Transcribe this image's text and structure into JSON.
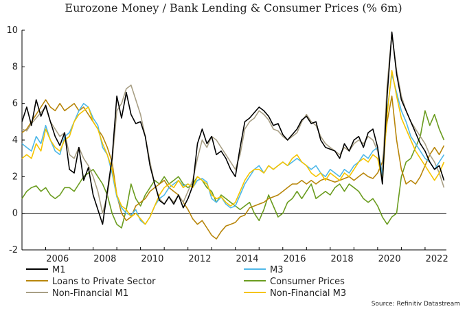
{
  "chart_data": {
    "type": "line",
    "title": "Eurozone Money / Bank Lending & Consumer Prices (% 6m)",
    "xlabel": "",
    "ylabel": "",
    "xlim": [
      2005.0,
      2022.9
    ],
    "ylim": [
      -2,
      10
    ],
    "yticks": [
      -2,
      0,
      2,
      4,
      6,
      8,
      10
    ],
    "xticks": [
      2006,
      2008,
      2010,
      2012,
      2014,
      2016,
      2018,
      2020,
      2022
    ],
    "grid": false,
    "legend_position": "bottom",
    "source": "Source: Refinitiv Datastream",
    "series": [
      {
        "name": "M1",
        "color": "#000000",
        "x": [
          2005.0,
          2005.2,
          2005.4,
          2005.6,
          2005.8,
          2006.0,
          2006.2,
          2006.4,
          2006.6,
          2006.8,
          2007.0,
          2007.2,
          2007.4,
          2007.6,
          2007.8,
          2008.0,
          2008.2,
          2008.4,
          2008.6,
          2008.8,
          2009.0,
          2009.2,
          2009.4,
          2009.6,
          2009.8,
          2010.0,
          2010.2,
          2010.4,
          2010.6,
          2010.8,
          2011.0,
          2011.2,
          2011.4,
          2011.6,
          2011.8,
          2012.0,
          2012.2,
          2012.4,
          2012.6,
          2012.8,
          2013.0,
          2013.2,
          2013.4,
          2013.6,
          2013.8,
          2014.0,
          2014.2,
          2014.4,
          2014.6,
          2014.8,
          2015.0,
          2015.2,
          2015.4,
          2015.6,
          2015.8,
          2016.0,
          2016.2,
          2016.4,
          2016.6,
          2016.8,
          2017.0,
          2017.2,
          2017.4,
          2017.6,
          2017.8,
          2018.0,
          2018.2,
          2018.4,
          2018.6,
          2018.8,
          2019.0,
          2019.2,
          2019.4,
          2019.6,
          2019.8,
          2020.0,
          2020.2,
          2020.4,
          2020.6,
          2020.8,
          2021.0,
          2021.2,
          2021.4,
          2021.6,
          2021.8,
          2022.0,
          2022.2,
          2022.4,
          2022.6,
          2022.8
        ],
        "values": [
          5.0,
          5.8,
          4.8,
          6.2,
          5.3,
          5.9,
          5.0,
          4.2,
          3.7,
          4.4,
          2.4,
          2.2,
          3.6,
          1.8,
          2.5,
          1.0,
          0.2,
          -0.6,
          1.2,
          3.0,
          6.4,
          5.2,
          6.6,
          5.4,
          4.9,
          5.0,
          4.2,
          2.6,
          1.6,
          0.7,
          0.5,
          0.9,
          0.5,
          1.0,
          0.3,
          0.8,
          1.5,
          3.8,
          4.6,
          3.8,
          4.2,
          3.2,
          3.4,
          3.0,
          2.4,
          2.0,
          3.6,
          5.0,
          5.2,
          5.5,
          5.8,
          5.6,
          5.3,
          4.8,
          4.9,
          4.3,
          4.0,
          4.3,
          4.6,
          5.1,
          5.3,
          4.9,
          5.0,
          4.0,
          3.6,
          3.5,
          3.4,
          3.0,
          3.8,
          3.4,
          4.0,
          4.2,
          3.6,
          4.4,
          4.6,
          3.6,
          1.6,
          6.4,
          9.9,
          7.6,
          6.2,
          5.6,
          5.0,
          4.4,
          3.8,
          3.4,
          2.8,
          2.4,
          2.6,
          1.8
        ]
      },
      {
        "name": "M3",
        "color": "#4fb8e8",
        "x": [
          2005.0,
          2005.2,
          2005.4,
          2005.6,
          2005.8,
          2006.0,
          2006.2,
          2006.4,
          2006.6,
          2006.8,
          2007.0,
          2007.2,
          2007.4,
          2007.6,
          2007.8,
          2008.0,
          2008.2,
          2008.4,
          2008.6,
          2008.8,
          2009.0,
          2009.2,
          2009.4,
          2009.6,
          2009.8,
          2010.0,
          2010.2,
          2010.4,
          2010.6,
          2010.8,
          2011.0,
          2011.2,
          2011.4,
          2011.6,
          2011.8,
          2012.0,
          2012.2,
          2012.4,
          2012.6,
          2012.8,
          2013.0,
          2013.2,
          2013.4,
          2013.6,
          2013.8,
          2014.0,
          2014.2,
          2014.4,
          2014.6,
          2014.8,
          2015.0,
          2015.2,
          2015.4,
          2015.6,
          2015.8,
          2016.0,
          2016.2,
          2016.4,
          2016.6,
          2016.8,
          2017.0,
          2017.2,
          2017.4,
          2017.6,
          2017.8,
          2018.0,
          2018.2,
          2018.4,
          2018.6,
          2018.8,
          2019.0,
          2019.2,
          2019.4,
          2019.6,
          2019.8,
          2020.0,
          2020.2,
          2020.4,
          2020.6,
          2020.8,
          2021.0,
          2021.2,
          2021.4,
          2021.6,
          2021.8,
          2022.0,
          2022.2,
          2022.4,
          2022.6,
          2022.8
        ],
        "values": [
          3.8,
          3.6,
          3.4,
          4.2,
          3.8,
          4.8,
          4.0,
          3.4,
          3.2,
          4.2,
          4.4,
          5.0,
          5.6,
          6.0,
          5.8,
          5.2,
          4.8,
          3.6,
          3.2,
          2.2,
          0.9,
          0.3,
          0.0,
          -0.1,
          0.2,
          -0.4,
          -0.6,
          -0.2,
          0.4,
          0.8,
          1.0,
          1.4,
          1.6,
          1.8,
          1.5,
          1.6,
          1.4,
          1.8,
          1.9,
          1.7,
          0.8,
          0.6,
          0.9,
          0.5,
          0.3,
          0.4,
          1.0,
          1.6,
          2.0,
          2.4,
          2.6,
          2.2,
          2.6,
          2.4,
          2.6,
          2.8,
          2.6,
          2.8,
          3.0,
          2.8,
          2.6,
          2.4,
          2.6,
          2.2,
          2.0,
          2.4,
          2.2,
          2.0,
          2.4,
          2.2,
          2.6,
          2.8,
          3.2,
          3.0,
          3.4,
          3.6,
          2.0,
          5.6,
          7.6,
          6.6,
          5.6,
          5.0,
          4.2,
          3.8,
          3.4,
          3.0,
          2.8,
          2.4,
          2.8,
          3.2
        ]
      },
      {
        "name": "Loans to Private Sector",
        "color": "#b8860b",
        "x": [
          2005.0,
          2005.2,
          2005.4,
          2005.6,
          2005.8,
          2006.0,
          2006.2,
          2006.4,
          2006.6,
          2006.8,
          2007.0,
          2007.2,
          2007.4,
          2007.6,
          2007.8,
          2008.0,
          2008.2,
          2008.4,
          2008.6,
          2008.8,
          2009.0,
          2009.2,
          2009.4,
          2009.6,
          2009.8,
          2010.0,
          2010.2,
          2010.4,
          2010.6,
          2010.8,
          2011.0,
          2011.2,
          2011.4,
          2011.6,
          2011.8,
          2012.0,
          2012.2,
          2012.4,
          2012.6,
          2012.8,
          2013.0,
          2013.2,
          2013.4,
          2013.6,
          2013.8,
          2014.0,
          2014.2,
          2014.4,
          2014.6,
          2014.8,
          2015.0,
          2015.2,
          2015.4,
          2015.6,
          2015.8,
          2016.0,
          2016.2,
          2016.4,
          2016.6,
          2016.8,
          2017.0,
          2017.2,
          2017.4,
          2017.6,
          2017.8,
          2018.0,
          2018.2,
          2018.4,
          2018.6,
          2018.8,
          2019.0,
          2019.2,
          2019.4,
          2019.6,
          2019.8,
          2020.0,
          2020.2,
          2020.4,
          2020.6,
          2020.8,
          2021.0,
          2021.2,
          2021.4,
          2021.6,
          2021.8,
          2022.0,
          2022.2,
          2022.4,
          2022.6,
          2022.8
        ],
        "values": [
          4.4,
          4.6,
          5.0,
          5.4,
          5.8,
          6.2,
          5.8,
          5.6,
          6.0,
          5.6,
          5.8,
          6.0,
          5.6,
          5.8,
          5.4,
          5.0,
          4.6,
          4.2,
          3.6,
          2.8,
          1.0,
          0.0,
          -0.4,
          -0.2,
          0.4,
          0.6,
          0.8,
          1.2,
          1.4,
          1.6,
          1.8,
          1.4,
          1.2,
          1.0,
          0.6,
          0.2,
          -0.3,
          -0.6,
          -0.4,
          -0.8,
          -1.2,
          -1.4,
          -1.0,
          -0.7,
          -0.6,
          -0.5,
          -0.2,
          -0.1,
          0.3,
          0.4,
          0.5,
          0.6,
          0.8,
          0.9,
          1.0,
          1.2,
          1.4,
          1.6,
          1.6,
          1.8,
          1.6,
          1.8,
          1.6,
          1.8,
          1.9,
          1.8,
          1.7,
          1.8,
          1.9,
          2.0,
          1.8,
          2.0,
          2.2,
          2.0,
          1.9,
          2.2,
          2.8,
          5.0,
          6.4,
          4.0,
          2.4,
          1.6,
          1.8,
          1.6,
          2.0,
          2.6,
          3.2,
          3.6,
          3.2,
          3.7
        ]
      },
      {
        "name": "Consumer Prices",
        "color": "#6a9c1f",
        "x": [
          2005.0,
          2005.2,
          2005.4,
          2005.6,
          2005.8,
          2006.0,
          2006.2,
          2006.4,
          2006.6,
          2006.8,
          2007.0,
          2007.2,
          2007.4,
          2007.6,
          2007.8,
          2008.0,
          2008.2,
          2008.4,
          2008.6,
          2008.8,
          2009.0,
          2009.2,
          2009.4,
          2009.6,
          2009.8,
          2010.0,
          2010.2,
          2010.4,
          2010.6,
          2010.8,
          2011.0,
          2011.2,
          2011.4,
          2011.6,
          2011.8,
          2012.0,
          2012.2,
          2012.4,
          2012.6,
          2012.8,
          2013.0,
          2013.2,
          2013.4,
          2013.6,
          2013.8,
          2014.0,
          2014.2,
          2014.4,
          2014.6,
          2014.8,
          2015.0,
          2015.2,
          2015.4,
          2015.6,
          2015.8,
          2016.0,
          2016.2,
          2016.4,
          2016.6,
          2016.8,
          2017.0,
          2017.2,
          2017.4,
          2017.6,
          2017.8,
          2018.0,
          2018.2,
          2018.4,
          2018.6,
          2018.8,
          2019.0,
          2019.2,
          2019.4,
          2019.6,
          2019.8,
          2020.0,
          2020.2,
          2020.4,
          2020.6,
          2020.8,
          2021.0,
          2021.2,
          2021.4,
          2021.6,
          2021.8,
          2022.0,
          2022.2,
          2022.4,
          2022.6,
          2022.8
        ],
        "values": [
          0.8,
          1.2,
          1.4,
          1.5,
          1.2,
          1.4,
          1.0,
          0.8,
          1.0,
          1.4,
          1.4,
          1.2,
          1.6,
          2.0,
          2.2,
          2.4,
          2.0,
          1.6,
          1.0,
          0.0,
          -0.6,
          -0.8,
          0.2,
          1.6,
          0.8,
          0.4,
          1.0,
          1.4,
          1.8,
          1.6,
          2.0,
          1.6,
          1.8,
          2.0,
          1.6,
          1.4,
          1.6,
          2.0,
          1.8,
          1.4,
          1.2,
          0.6,
          1.0,
          0.8,
          0.6,
          0.4,
          0.2,
          0.4,
          0.6,
          0.0,
          -0.4,
          0.2,
          1.0,
          0.4,
          -0.2,
          0.0,
          0.6,
          0.8,
          1.2,
          0.8,
          1.2,
          1.6,
          0.8,
          1.0,
          1.2,
          1.0,
          1.4,
          1.6,
          1.2,
          1.6,
          1.4,
          1.2,
          0.8,
          0.6,
          0.8,
          0.4,
          -0.2,
          -0.6,
          -0.2,
          0.0,
          2.0,
          2.8,
          3.0,
          3.6,
          4.2,
          5.6,
          4.8,
          5.4,
          4.6,
          4.0
        ]
      },
      {
        "name": "Non-Financial M1",
        "color": "#a89f85",
        "x": [
          2005.0,
          2005.2,
          2005.4,
          2005.6,
          2005.8,
          2006.0,
          2006.2,
          2006.4,
          2006.6,
          2006.8,
          2007.0,
          2007.2,
          2007.4,
          2007.6,
          2007.8,
          2008.0,
          2008.2,
          2008.4,
          2008.6,
          2008.8,
          2009.0,
          2009.2,
          2009.4,
          2009.6,
          2009.8,
          2010.0,
          2010.2,
          2010.4,
          2010.6,
          2010.8,
          2011.0,
          2011.2,
          2011.4,
          2011.6,
          2011.8,
          2012.0,
          2012.2,
          2012.4,
          2012.6,
          2012.8,
          2013.0,
          2013.2,
          2013.4,
          2013.6,
          2013.8,
          2014.0,
          2014.2,
          2014.4,
          2014.6,
          2014.8,
          2015.0,
          2015.2,
          2015.4,
          2015.6,
          2015.8,
          2016.0,
          2016.2,
          2016.4,
          2016.6,
          2016.8,
          2017.0,
          2017.2,
          2017.4,
          2017.6,
          2017.8,
          2018.0,
          2018.2,
          2018.4,
          2018.6,
          2018.8,
          2019.0,
          2019.2,
          2019.4,
          2019.6,
          2019.8,
          2020.0,
          2020.2,
          2020.4,
          2020.6,
          2020.8,
          2021.0,
          2021.2,
          2021.4,
          2021.6,
          2021.8,
          2022.0,
          2022.2,
          2022.4,
          2022.6,
          2022.8
        ],
        "values": [
          4.6,
          4.5,
          4.9,
          5.2,
          5.5,
          5.8,
          5.0,
          4.6,
          4.2,
          4.4,
          3.2,
          3.0,
          3.6,
          3.0,
          2.6,
          2.0,
          1.2,
          0.0,
          1.0,
          2.8,
          5.6,
          6.0,
          6.8,
          7.0,
          6.2,
          5.4,
          4.2,
          2.8,
          1.6,
          0.8,
          0.5,
          0.9,
          0.6,
          1.0,
          0.6,
          1.2,
          1.8,
          3.0,
          4.0,
          3.6,
          4.2,
          4.0,
          3.6,
          3.2,
          2.8,
          2.4,
          3.2,
          4.6,
          5.0,
          5.2,
          5.6,
          5.4,
          5.1,
          4.6,
          4.5,
          4.2,
          4.0,
          4.2,
          4.4,
          5.0,
          5.4,
          5.0,
          4.8,
          4.2,
          3.8,
          3.6,
          3.4,
          3.2,
          3.6,
          3.4,
          3.8,
          4.0,
          3.8,
          4.2,
          4.0,
          3.4,
          2.2,
          7.0,
          9.8,
          7.8,
          6.4,
          5.6,
          5.0,
          4.6,
          4.2,
          3.8,
          3.2,
          2.8,
          2.2,
          1.4
        ]
      },
      {
        "name": "Non-Financial M3",
        "color": "#f5c400",
        "x": [
          2005.0,
          2005.2,
          2005.4,
          2005.6,
          2005.8,
          2006.0,
          2006.2,
          2006.4,
          2006.6,
          2006.8,
          2007.0,
          2007.2,
          2007.4,
          2007.6,
          2007.8,
          2008.0,
          2008.2,
          2008.4,
          2008.6,
          2008.8,
          2009.0,
          2009.2,
          2009.4,
          2009.6,
          2009.8,
          2010.0,
          2010.2,
          2010.4,
          2010.6,
          2010.8,
          2011.0,
          2011.2,
          2011.4,
          2011.6,
          2011.8,
          2012.0,
          2012.2,
          2012.4,
          2012.6,
          2012.8,
          2013.0,
          2013.2,
          2013.4,
          2013.6,
          2013.8,
          2014.0,
          2014.2,
          2014.4,
          2014.6,
          2014.8,
          2015.0,
          2015.2,
          2015.4,
          2015.6,
          2015.8,
          2016.0,
          2016.2,
          2016.4,
          2016.6,
          2016.8,
          2017.0,
          2017.2,
          2017.4,
          2017.6,
          2017.8,
          2018.0,
          2018.2,
          2018.4,
          2018.6,
          2018.8,
          2019.0,
          2019.2,
          2019.4,
          2019.6,
          2019.8,
          2020.0,
          2020.2,
          2020.4,
          2020.6,
          2020.8,
          2021.0,
          2021.2,
          2021.4,
          2021.6,
          2021.8,
          2022.0,
          2022.2,
          2022.4,
          2022.6,
          2022.8
        ],
        "values": [
          3.0,
          3.2,
          3.0,
          3.8,
          3.4,
          4.6,
          4.0,
          3.6,
          3.4,
          4.0,
          4.2,
          5.0,
          5.4,
          5.6,
          5.8,
          5.0,
          4.6,
          3.8,
          3.2,
          2.4,
          1.0,
          0.4,
          0.2,
          -0.2,
          0.0,
          -0.3,
          -0.6,
          -0.2,
          0.4,
          1.0,
          1.4,
          1.6,
          1.4,
          1.8,
          1.4,
          1.6,
          1.4,
          2.0,
          1.8,
          1.6,
          1.0,
          0.8,
          0.9,
          0.6,
          0.4,
          0.6,
          1.2,
          1.8,
          2.2,
          2.4,
          2.4,
          2.2,
          2.6,
          2.4,
          2.6,
          2.8,
          2.6,
          3.0,
          3.2,
          2.8,
          2.6,
          2.2,
          2.0,
          2.2,
          1.8,
          2.2,
          2.0,
          1.8,
          2.2,
          2.0,
          2.4,
          2.8,
          3.0,
          2.8,
          3.2,
          3.0,
          1.8,
          5.4,
          7.8,
          6.4,
          5.2,
          4.6,
          4.0,
          3.4,
          3.0,
          2.6,
          2.2,
          1.8,
          2.2,
          2.8
        ]
      }
    ]
  }
}
